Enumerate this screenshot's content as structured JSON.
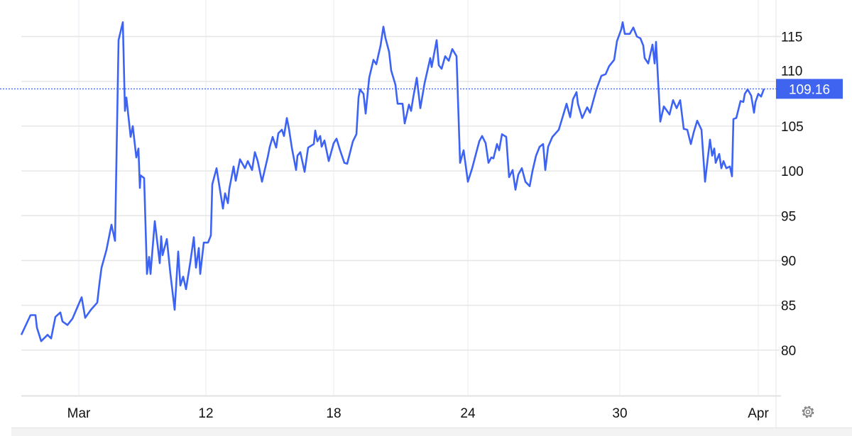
{
  "chart_data": {
    "type": "line",
    "title": "",
    "xlabel": "",
    "ylabel": "",
    "ylim": [
      75,
      119
    ],
    "xlim": [
      0,
      212
    ],
    "grid": true,
    "y_axis_side": "right",
    "yticks": [
      80,
      85,
      90,
      95,
      100,
      105,
      110,
      115
    ],
    "xticks": [
      {
        "label": "Mar",
        "x": 16.2
      },
      {
        "label": "12",
        "x": 52
      },
      {
        "label": "18",
        "x": 88
      },
      {
        "label": "24",
        "x": 125.8
      },
      {
        "label": "30",
        "x": 168.6
      },
      {
        "label": "Apr",
        "x": 207.6
      }
    ],
    "last_value_label": "109.16",
    "last_value": 109.16,
    "line_color": "#3d63f5",
    "label_bg_color": "#3f65f0",
    "series": [
      {
        "points": [
          [
            0,
            81.7
          ],
          [
            2.6,
            83.9
          ],
          [
            4,
            83.9
          ],
          [
            4.4,
            82.5
          ],
          [
            5.6,
            81.0
          ],
          [
            7.4,
            81.7
          ],
          [
            8.4,
            81.3
          ],
          [
            9.6,
            83.7
          ],
          [
            11,
            84.2
          ],
          [
            11.6,
            83.2
          ],
          [
            13,
            82.8
          ],
          [
            14.4,
            83.5
          ],
          [
            17,
            85.9
          ],
          [
            18,
            83.6
          ],
          [
            19.6,
            84.5
          ],
          [
            21.4,
            85.3
          ],
          [
            22,
            87.4
          ],
          [
            22.6,
            89.2
          ],
          [
            24,
            91.2
          ],
          [
            25.4,
            94.0
          ],
          [
            26.4,
            92.2
          ],
          [
            27.4,
            114.6
          ],
          [
            28.6,
            116.6
          ],
          [
            29.2,
            106.7
          ],
          [
            29.6,
            108.2
          ],
          [
            30.8,
            103.8
          ],
          [
            31.4,
            105.0
          ],
          [
            32.4,
            101.5
          ],
          [
            33,
            102.5
          ],
          [
            33.4,
            98.1
          ],
          [
            33.6,
            99.5
          ],
          [
            34.6,
            99.2
          ],
          [
            35.4,
            88.5
          ],
          [
            36,
            90.4
          ],
          [
            36.4,
            88.5
          ],
          [
            37.6,
            94.4
          ],
          [
            39,
            89.7
          ],
          [
            39.4,
            92.7
          ],
          [
            39.8,
            90.6
          ],
          [
            41,
            92.4
          ],
          [
            42,
            88.5
          ],
          [
            43.2,
            84.5
          ],
          [
            44.2,
            91.0
          ],
          [
            44.8,
            87.2
          ],
          [
            45.6,
            88.2
          ],
          [
            46.4,
            86.8
          ],
          [
            47.6,
            89.8
          ],
          [
            48.6,
            92.6
          ],
          [
            49.2,
            89.2
          ],
          [
            50,
            91.4
          ],
          [
            50.4,
            88.5
          ],
          [
            51.4,
            92.0
          ],
          [
            52.6,
            92.0
          ],
          [
            53.4,
            92.8
          ],
          [
            53.8,
            98.5
          ],
          [
            55,
            100.3
          ],
          [
            56.8,
            95.8
          ],
          [
            57.4,
            97.5
          ],
          [
            58.2,
            96.4
          ],
          [
            58.6,
            98.0
          ],
          [
            59.8,
            100.5
          ],
          [
            60.4,
            98.9
          ],
          [
            61.6,
            101.3
          ],
          [
            63,
            100.3
          ],
          [
            63.8,
            101.1
          ],
          [
            65,
            100.1
          ],
          [
            65.8,
            102.1
          ],
          [
            66.6,
            101.1
          ],
          [
            67.8,
            98.8
          ],
          [
            69.4,
            101.5
          ],
          [
            70,
            102.7
          ],
          [
            70.8,
            103.8
          ],
          [
            71.8,
            102.6
          ],
          [
            72.4,
            104.2
          ],
          [
            73.4,
            104.6
          ],
          [
            74,
            103.9
          ],
          [
            74.8,
            105.9
          ],
          [
            75.4,
            104.7
          ],
          [
            76.2,
            102.6
          ],
          [
            77.4,
            100.1
          ],
          [
            77.8,
            101.7
          ],
          [
            78.6,
            102.1
          ],
          [
            79.8,
            99.9
          ],
          [
            80.8,
            102.6
          ],
          [
            82.4,
            103.0
          ],
          [
            82.8,
            104.5
          ],
          [
            83.4,
            103.3
          ],
          [
            84.2,
            103.9
          ],
          [
            84.6,
            102.7
          ],
          [
            85.4,
            103.4
          ],
          [
            86.6,
            101.1
          ],
          [
            88,
            103.1
          ],
          [
            88.8,
            103.6
          ],
          [
            89.8,
            102.3
          ],
          [
            91,
            100.9
          ],
          [
            91.8,
            100.8
          ],
          [
            93.4,
            103.3
          ],
          [
            94.4,
            104.1
          ],
          [
            95,
            108.2
          ],
          [
            95.4,
            109.1
          ],
          [
            96.4,
            108.6
          ],
          [
            97,
            106.4
          ],
          [
            98,
            110.4
          ],
          [
            99.2,
            112.4
          ],
          [
            100,
            111.9
          ],
          [
            101.2,
            114.0
          ],
          [
            102,
            116.1
          ],
          [
            102.6,
            114.8
          ],
          [
            103.6,
            113.3
          ],
          [
            104.2,
            111.2
          ],
          [
            105.4,
            109.6
          ],
          [
            106,
            107.5
          ],
          [
            107.4,
            107.5
          ],
          [
            108,
            105.3
          ],
          [
            109.2,
            107.4
          ],
          [
            109.8,
            106.7
          ],
          [
            110.4,
            108.2
          ],
          [
            111.4,
            110.4
          ],
          [
            112.4,
            107.0
          ],
          [
            113.6,
            109.8
          ],
          [
            115.2,
            112.6
          ],
          [
            115.6,
            111.6
          ],
          [
            117,
            114.6
          ],
          [
            117.6,
            111.8
          ],
          [
            118.4,
            111.4
          ],
          [
            119.4,
            112.8
          ],
          [
            120.4,
            112.3
          ],
          [
            121.4,
            113.6
          ],
          [
            122.6,
            112.8
          ],
          [
            123.6,
            100.9
          ],
          [
            124.6,
            102.3
          ],
          [
            125.8,
            98.8
          ],
          [
            127,
            100.3
          ],
          [
            129,
            103.3
          ],
          [
            129.8,
            103.9
          ],
          [
            130.8,
            103.1
          ],
          [
            131.6,
            100.9
          ],
          [
            132.4,
            101.5
          ],
          [
            133,
            101.4
          ],
          [
            134,
            103.0
          ],
          [
            134.6,
            102.3
          ],
          [
            135.4,
            104.1
          ],
          [
            136.6,
            103.8
          ],
          [
            137.4,
            99.3
          ],
          [
            138.4,
            100.1
          ],
          [
            139.2,
            97.9
          ],
          [
            140,
            99.6
          ],
          [
            141,
            100.3
          ],
          [
            142,
            98.8
          ],
          [
            143.2,
            98.3
          ],
          [
            144,
            100.0
          ],
          [
            145,
            101.7
          ],
          [
            146,
            102.7
          ],
          [
            147,
            103.0
          ],
          [
            147.6,
            100.1
          ],
          [
            148.4,
            102.7
          ],
          [
            149.6,
            103.8
          ],
          [
            151.4,
            104.6
          ],
          [
            152.4,
            105.9
          ],
          [
            153.6,
            107.5
          ],
          [
            154.6,
            106.0
          ],
          [
            155.4,
            108.0
          ],
          [
            156.4,
            108.8
          ],
          [
            156.8,
            107.5
          ],
          [
            158,
            105.9
          ],
          [
            159.4,
            107.1
          ],
          [
            160.2,
            106.5
          ],
          [
            162,
            109.1
          ],
          [
            163.4,
            110.6
          ],
          [
            164.6,
            110.8
          ],
          [
            165.6,
            111.7
          ],
          [
            167,
            112.4
          ],
          [
            167.8,
            114.5
          ],
          [
            169,
            115.8
          ],
          [
            169.4,
            116.6
          ],
          [
            170,
            115.3
          ],
          [
            171.4,
            115.3
          ],
          [
            172.4,
            116.0
          ],
          [
            173.4,
            115.0
          ],
          [
            174.4,
            114.8
          ],
          [
            175.2,
            114.0
          ],
          [
            175.6,
            112.6
          ],
          [
            176.6,
            112.0
          ],
          [
            177.8,
            114.1
          ],
          [
            178.4,
            112.0
          ],
          [
            178.8,
            114.4
          ],
          [
            180,
            105.5
          ],
          [
            181,
            107.2
          ],
          [
            182.6,
            106.3
          ],
          [
            183.6,
            107.9
          ],
          [
            184.6,
            107.0
          ],
          [
            185.6,
            107.9
          ],
          [
            186.6,
            104.7
          ],
          [
            187.6,
            104.6
          ],
          [
            188.6,
            103.0
          ],
          [
            189.4,
            104.3
          ],
          [
            190.4,
            105.6
          ],
          [
            191.6,
            104.6
          ],
          [
            192.6,
            98.8
          ],
          [
            194,
            103.5
          ],
          [
            194.6,
            101.7
          ],
          [
            195.2,
            102.5
          ],
          [
            195.6,
            100.9
          ],
          [
            196.6,
            101.9
          ],
          [
            197.2,
            100.3
          ],
          [
            197.8,
            101.1
          ],
          [
            198.6,
            100.3
          ],
          [
            199.6,
            100.5
          ],
          [
            200.2,
            99.4
          ],
          [
            200.6,
            105.8
          ],
          [
            201.4,
            105.9
          ],
          [
            202.6,
            107.8
          ],
          [
            203.4,
            107.7
          ],
          [
            203.8,
            108.6
          ],
          [
            204.6,
            109.1
          ],
          [
            205.6,
            108.4
          ],
          [
            206.4,
            106.5
          ],
          [
            206.8,
            107.7
          ],
          [
            207.6,
            108.6
          ],
          [
            208.4,
            108.3
          ],
          [
            209.2,
            109.16
          ]
        ]
      }
    ]
  },
  "controls": {
    "settings_icon": "gear-icon"
  }
}
